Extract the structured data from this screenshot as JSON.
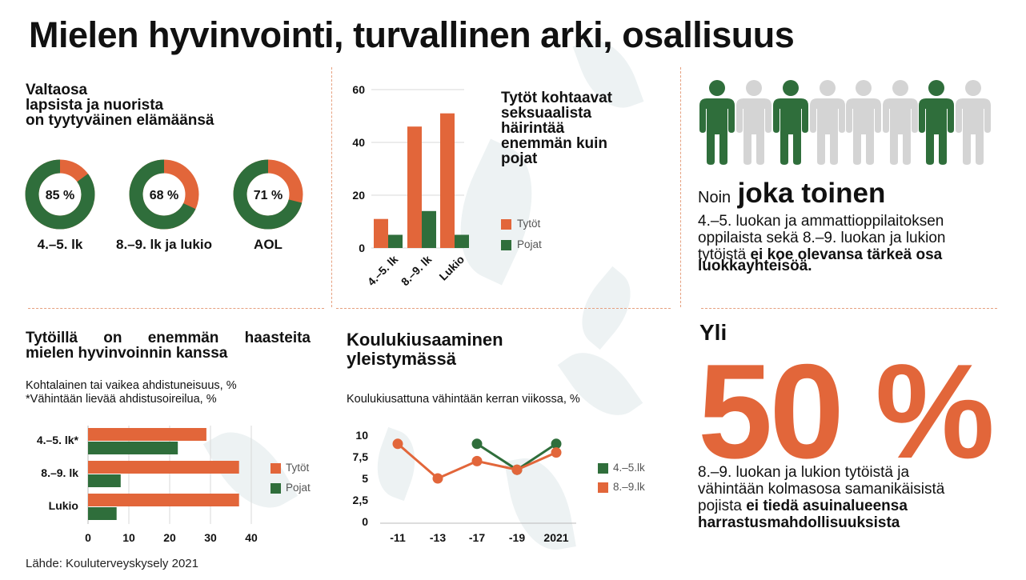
{
  "title": "Mielen hyvinvointi, turvallinen arki, osallisuus",
  "colors": {
    "orange": "#e2663a",
    "green": "#2f6e3b",
    "grey": "#d4d4d4",
    "separator": "#e6a07f"
  },
  "satisfaction": {
    "title_lines": [
      "Valtaosa",
      "lapsista ja nuorista",
      "on tyytyväinen elämäänsä"
    ],
    "donuts": [
      {
        "label": "4.–5. lk",
        "value": 85,
        "text": "85 %"
      },
      {
        "label": "8.–9. lk ja lukio",
        "value": 68,
        "text": "68 %"
      },
      {
        "label": "AOL",
        "value": 71,
        "text": "71 %"
      }
    ]
  },
  "harassment": {
    "title_lines": [
      "Tytöt kohtaavat",
      "seksuaalista",
      "häirintää",
      "enemmän kuin",
      "pojat"
    ],
    "legend": {
      "girls": "Tytöt",
      "boys": "Pojat"
    }
  },
  "participation": {
    "people_icon": "person-icon",
    "people_pattern": [
      "green",
      "grey",
      "green",
      "grey",
      "grey",
      "grey",
      "green",
      "grey"
    ],
    "prefix": "Noin",
    "highlight": "joka toinen",
    "body_lines": [
      "4.–5. luokan ja ammattioppilaitoksen",
      "oppilaista sekä 8.–9. luokan ja lukion"
    ],
    "last_line_start": "tytöistä",
    "bold_lines": [
      "ei koe olevansa tärkeä osa",
      "luokkayhteisöä."
    ]
  },
  "anxiety": {
    "title_lines": [
      "Tytöillä on enemmän haasteita",
      "mielen hyvinvoinnin kanssa"
    ],
    "subtitle_lines": [
      "Kohtalainen tai vaikea ahdistuneisuus, %",
      "*Vähintään lievää ahdistusoireilua, %"
    ],
    "legend": {
      "girls": "Tytöt",
      "boys": "Pojat"
    }
  },
  "bullying": {
    "title_lines": [
      "Koulukiusaaminen",
      "yleistymässä"
    ],
    "subtitle": "Koulukiusattuna vähintään kerran viikossa, %",
    "legend": {
      "a": "4.–5.lk",
      "b": "8.–9.lk"
    }
  },
  "hobbies": {
    "prefix": "Yli",
    "big": "50 %",
    "body_lines": [
      "8.–9. luokan ja lukion tytöistä ja",
      "vähintään kolmasosa samanikäisistä"
    ],
    "last_line_start": "pojista",
    "bold_inline": "ei tiedä asuinalueensa",
    "bold_line": "harrastusmahdollisuuksista"
  },
  "source": "Lähde: Kouluterveyskysely 2021",
  "chart_data": [
    {
      "type": "pie",
      "title": "Valtaosa lapsista ja nuorista on tyytyväinen elämäänsä",
      "categories": [
        "4.–5. lk",
        "8.–9. lk ja lukio",
        "AOL"
      ],
      "values": [
        85,
        68,
        71
      ]
    },
    {
      "type": "bar",
      "title": "Tytöt kohtaavat seksuaalista häirintää enemmän kuin pojat",
      "categories": [
        "4.–5. lk",
        "8.–9. lk",
        "Lukio"
      ],
      "series": [
        {
          "name": "Tytöt",
          "values": [
            11,
            46,
            51
          ]
        },
        {
          "name": "Pojat",
          "values": [
            5,
            14,
            5
          ]
        }
      ],
      "ylim": [
        0,
        60
      ],
      "yticks": [
        "0",
        "20",
        "40",
        "60"
      ],
      "grid": "horizontal",
      "legend": "right"
    },
    {
      "type": "bar",
      "orientation": "horizontal",
      "title": "Tytöillä on enemmän haasteita mielen hyvinvoinnin kanssa",
      "categories": [
        "4.–5. lk*",
        "8.–9. lk",
        "Lukio"
      ],
      "series": [
        {
          "name": "Tytöt",
          "values": [
            29,
            37,
            37
          ]
        },
        {
          "name": "Pojat",
          "values": [
            22,
            8,
            7
          ]
        }
      ],
      "xlim": [
        0,
        40
      ],
      "xticks": [
        "0",
        "10",
        "20",
        "30",
        "40"
      ],
      "grid": "vertical",
      "legend": "right"
    },
    {
      "type": "line",
      "title": "Koulukiusaaminen yleistymässä",
      "x": [
        "-11",
        "-13",
        "-17",
        "-19",
        "2021"
      ],
      "series": [
        {
          "name": "4.–5.lk",
          "values": [
            null,
            null,
            9,
            6,
            9
          ]
        },
        {
          "name": "8.–9.lk",
          "values": [
            9,
            5,
            7,
            6,
            8
          ]
        }
      ],
      "ylim": [
        0,
        10
      ],
      "yticks": [
        "0",
        "2,5",
        "5",
        "7,5",
        "10"
      ],
      "grid": "none",
      "legend": "right"
    }
  ]
}
